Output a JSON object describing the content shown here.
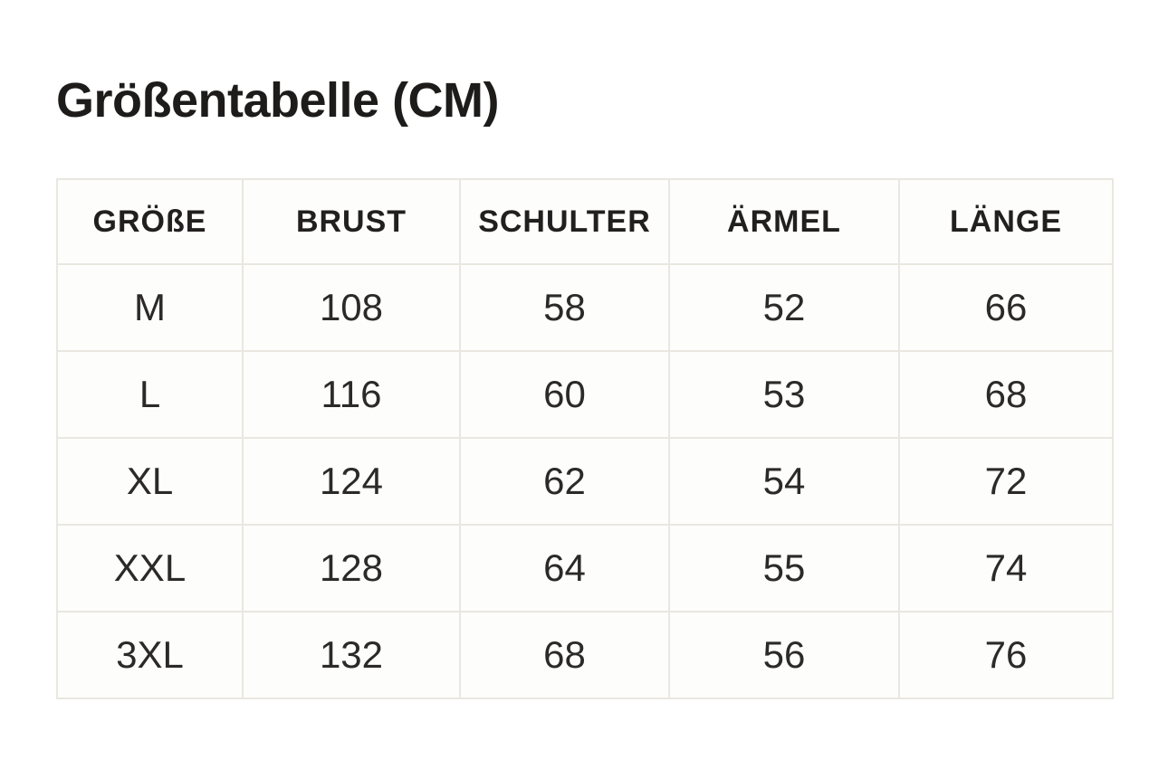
{
  "title": "Größentabelle (CM)",
  "colors": {
    "page_background": "#ffffff",
    "cell_background": "#fdfdfb",
    "cell_border": "#e9e7e0",
    "text": "#1d1c1b"
  },
  "table": {
    "headers": [
      "GRÖßE",
      "BRUST",
      "SCHULTER",
      "ÄRMEL",
      "LÄNGE"
    ],
    "rows": [
      [
        "M",
        "108",
        "58",
        "52",
        "66"
      ],
      [
        "L",
        "116",
        "60",
        "53",
        "68"
      ],
      [
        "XL",
        "124",
        "62",
        "54",
        "72"
      ],
      [
        "XXL",
        "128",
        "64",
        "55",
        "74"
      ],
      [
        "3XL",
        "132",
        "68",
        "56",
        "76"
      ]
    ]
  },
  "chart_data": {
    "type": "table",
    "title": "Größentabelle (CM)",
    "columns": [
      "GRÖßE",
      "BRUST",
      "SCHULTER",
      "ÄRMEL",
      "LÄNGE"
    ],
    "rows": [
      {
        "groesse": "M",
        "brust": 108,
        "schulter": 58,
        "aermel": 52,
        "laenge": 66
      },
      {
        "groesse": "L",
        "brust": 116,
        "schulter": 60,
        "aermel": 53,
        "laenge": 68
      },
      {
        "groesse": "XL",
        "brust": 124,
        "schulter": 62,
        "aermel": 54,
        "laenge": 72
      },
      {
        "groesse": "XXL",
        "brust": 128,
        "schulter": 64,
        "aermel": 55,
        "laenge": 74
      },
      {
        "groesse": "3XL",
        "brust": 132,
        "schulter": 68,
        "aermel": 56,
        "laenge": 76
      }
    ],
    "units": "cm"
  }
}
